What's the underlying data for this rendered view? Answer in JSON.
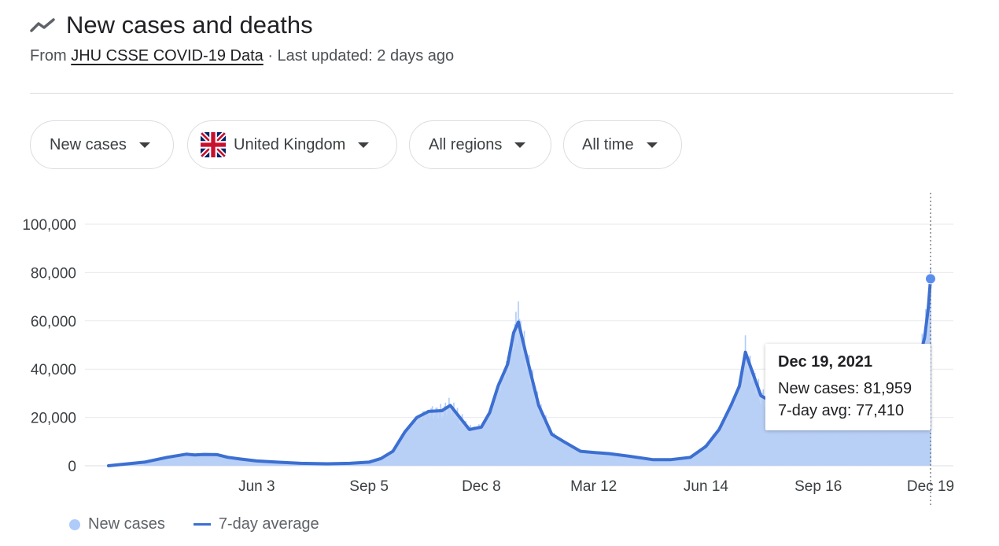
{
  "header": {
    "title": "New cases and deaths",
    "source_prefix": "From",
    "source_link": "JHU CSSE COVID-19 Data",
    "updated": "· Last updated: 2 days ago"
  },
  "filters": {
    "metric": "New cases",
    "country": "United Kingdom",
    "region": "All regions",
    "range": "All time"
  },
  "legend": {
    "new_cases": "New cases",
    "avg": "7-day average"
  },
  "tooltip": {
    "date": "Dec 19, 2021",
    "new_cases": "New cases: 81,959",
    "avg": "7-day avg: 77,410"
  },
  "colors": {
    "bars": "#aecbfa",
    "area": "#bad0f5",
    "line": "#3c6fd1",
    "grid": "#e8eaed"
  },
  "chart_data": {
    "type": "bar",
    "title": "",
    "xlabel": "",
    "ylabel": "",
    "ylim": [
      0,
      100000
    ],
    "yticks": [
      0,
      20000,
      40000,
      60000,
      80000,
      100000
    ],
    "ytick_labels": [
      "0",
      "20,000",
      "40,000",
      "60,000",
      "80,000",
      "100,000"
    ],
    "xtick_labels": [
      "Jun 3",
      "Sep 5",
      "Dec 8",
      "Mar 12",
      "Jun 14",
      "Sep 16",
      "Dec 19"
    ],
    "xtick_dates": [
      "2020-06-03",
      "2020-09-05",
      "2020-12-08",
      "2021-03-12",
      "2021-06-14",
      "2021-09-16",
      "2021-12-19"
    ],
    "x_start": "2020-01-31",
    "x_end": "2021-12-19",
    "grid": true,
    "legend_position": "bottom-left",
    "series": [
      {
        "name": "7-day average",
        "type": "line",
        "dates": [
          "2020-01-31",
          "2020-03-01",
          "2020-03-20",
          "2020-04-05",
          "2020-04-12",
          "2020-04-20",
          "2020-05-01",
          "2020-05-10",
          "2020-05-20",
          "2020-06-03",
          "2020-06-20",
          "2020-07-10",
          "2020-08-01",
          "2020-08-20",
          "2020-09-05",
          "2020-09-15",
          "2020-09-25",
          "2020-10-05",
          "2020-10-15",
          "2020-10-25",
          "2020-11-05",
          "2020-11-12",
          "2020-11-20",
          "2020-11-28",
          "2020-12-08",
          "2020-12-15",
          "2020-12-22",
          "2020-12-30",
          "2021-01-04",
          "2021-01-08",
          "2021-01-15",
          "2021-01-25",
          "2021-02-05",
          "2021-02-15",
          "2021-03-01",
          "2021-03-12",
          "2021-03-25",
          "2021-04-10",
          "2021-05-01",
          "2021-05-15",
          "2021-06-01",
          "2021-06-14",
          "2021-06-25",
          "2021-07-05",
          "2021-07-12",
          "2021-07-17",
          "2021-07-22",
          "2021-07-30",
          "2021-08-10",
          "2021-08-25",
          "2021-09-05",
          "2021-09-16",
          "2021-10-01",
          "2021-10-15",
          "2021-10-25",
          "2021-11-05",
          "2021-11-20",
          "2021-12-01",
          "2021-12-10",
          "2021-12-14",
          "2021-12-17",
          "2021-12-19"
        ],
        "values": [
          0,
          1500,
          3500,
          4800,
          4500,
          4700,
          4600,
          3500,
          2800,
          2000,
          1500,
          1000,
          800,
          1000,
          1500,
          3000,
          6000,
          14000,
          20000,
          22500,
          22800,
          25000,
          20000,
          15000,
          16000,
          22000,
          33000,
          42000,
          55000,
          59500,
          45000,
          25000,
          13000,
          10000,
          6000,
          5500,
          5000,
          4000,
          2500,
          2500,
          3500,
          8000,
          15000,
          25000,
          33000,
          47000,
          40000,
          29000,
          26000,
          31000,
          36000,
          35000,
          36000,
          40000,
          43000,
          45000,
          40000,
          42000,
          45000,
          53000,
          65000,
          77410
        ]
      },
      {
        "name": "New cases",
        "type": "bar",
        "values_note": "Daily bars; daily values fluctuate around the 7-day average",
        "peaks": [
          {
            "date": "2021-01-08",
            "value": 68000
          },
          {
            "date": "2021-07-17",
            "value": 54000
          },
          {
            "date": "2021-12-19",
            "value": 81959
          }
        ]
      }
    ]
  }
}
